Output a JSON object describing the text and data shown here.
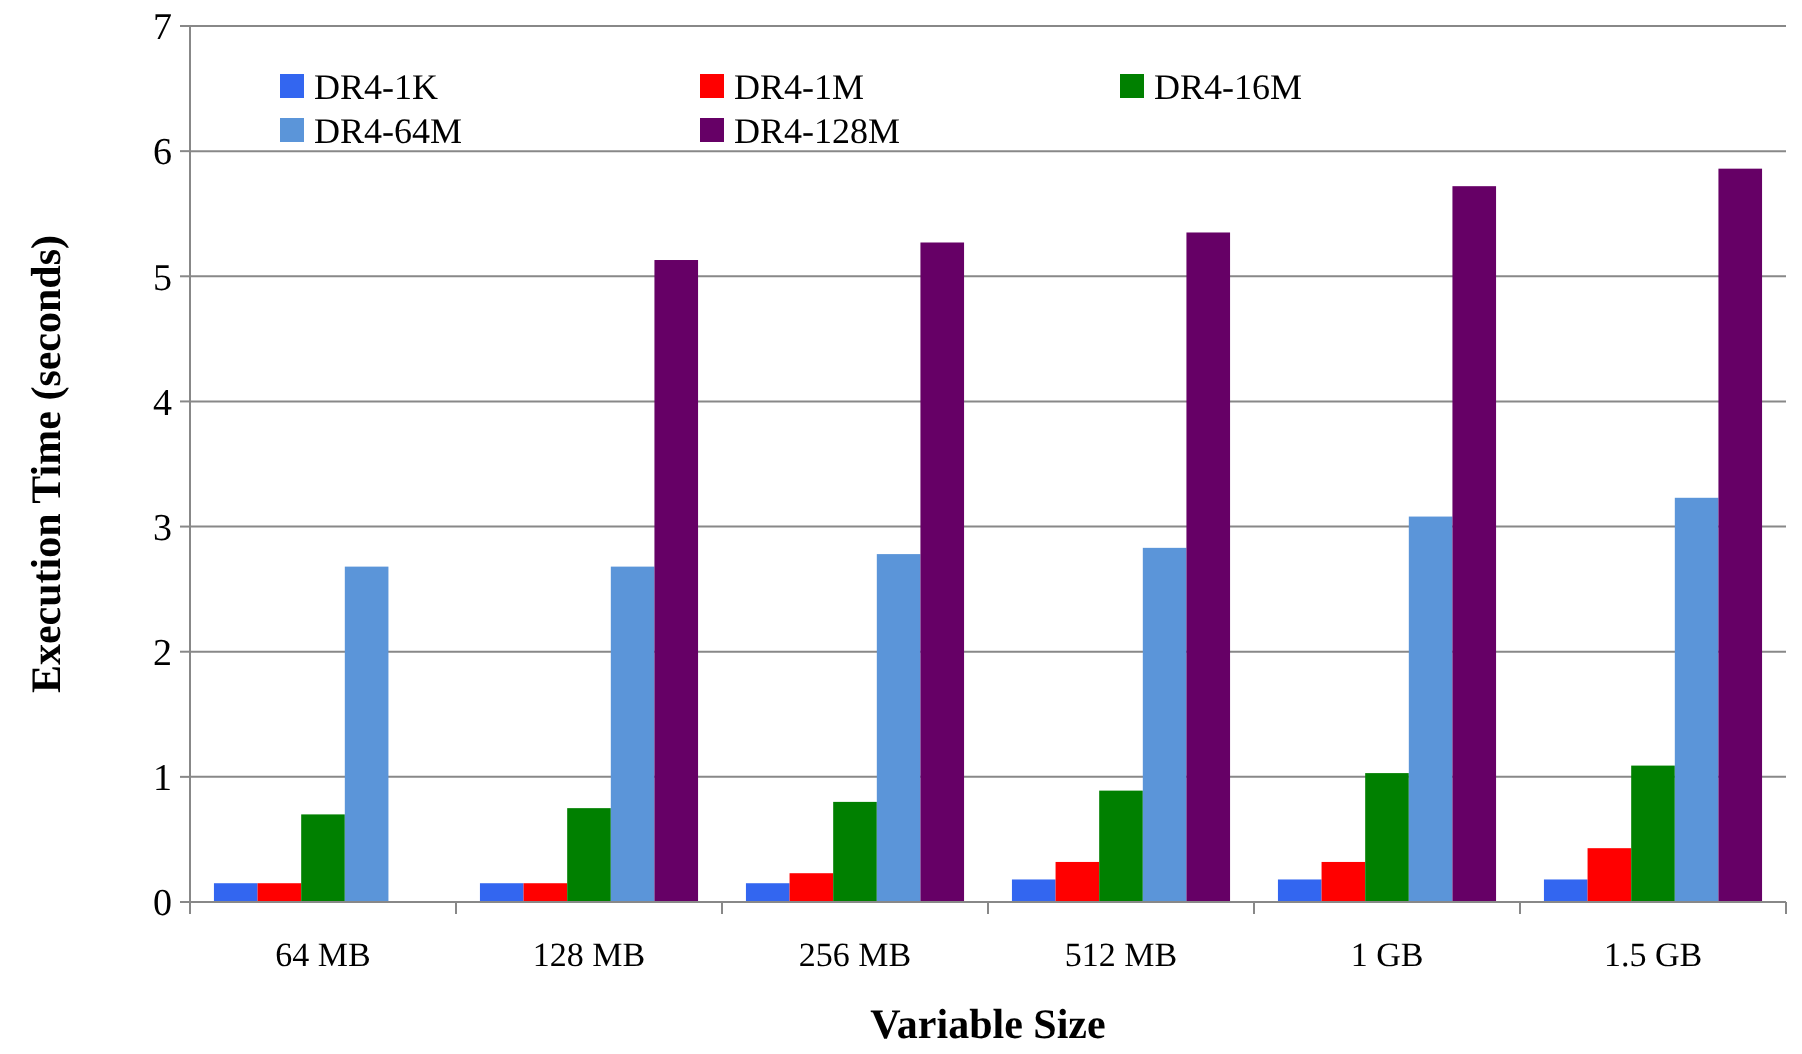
{
  "chart_data": {
    "type": "bar",
    "xlabel": "Variable Size",
    "ylabel": "Execution Time (seconds)",
    "categories": [
      "64 MB",
      "128 MB",
      "256 MB",
      "512 MB",
      "1 GB",
      "1.5 GB"
    ],
    "series": [
      {
        "name": "DR4-1K",
        "color": "#3366f0",
        "values": [
          0.15,
          0.15,
          0.15,
          0.18,
          0.18,
          0.18
        ]
      },
      {
        "name": "DR4-1M",
        "color": "#ff0000",
        "values": [
          0.15,
          0.15,
          0.23,
          0.32,
          0.32,
          0.43
        ]
      },
      {
        "name": "DR4-16M",
        "color": "#008000",
        "values": [
          0.7,
          0.75,
          0.8,
          0.89,
          1.03,
          1.09
        ]
      },
      {
        "name": "DR4-64M",
        "color": "#5b95d9",
        "values": [
          2.68,
          2.68,
          2.78,
          2.83,
          3.08,
          3.23
        ]
      },
      {
        "name": "DR4-128M",
        "color": "#660066",
        "values": [
          null,
          5.13,
          5.27,
          5.35,
          5.72,
          5.86
        ]
      }
    ],
    "ylim": [
      0,
      7
    ],
    "yticks": [
      0,
      1,
      2,
      3,
      4,
      5,
      6,
      7
    ],
    "grid": "y",
    "legend": "top left"
  }
}
